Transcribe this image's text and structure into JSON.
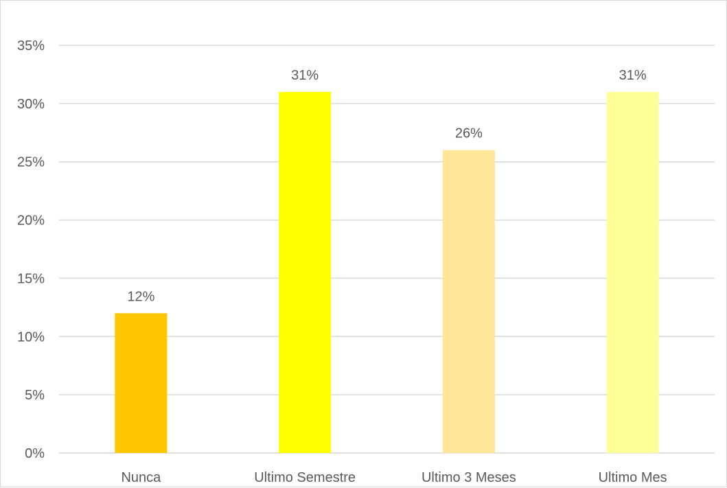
{
  "chart_data": {
    "type": "bar",
    "categories": [
      "Nunca",
      "Ultimo Semestre",
      "Ultimo 3 Meses",
      "Ultimo Mes"
    ],
    "values": [
      12,
      31,
      26,
      31
    ],
    "data_labels": [
      "12%",
      "31%",
      "26%",
      "31%"
    ],
    "bar_colors": [
      "#FFC700",
      "#FFFF00",
      "#FFE699",
      "#FFFF99"
    ],
    "ylim": [
      0,
      35
    ],
    "ytick_values": [
      0,
      5,
      10,
      15,
      20,
      25,
      30,
      35
    ],
    "ytick_labels": [
      "0%",
      "5%",
      "10%",
      "15%",
      "20%",
      "25%",
      "30%",
      "35%"
    ],
    "grid": true,
    "legend": "none",
    "title": "",
    "xlabel": "",
    "ylabel": ""
  },
  "colors": {
    "gridline": "#D9D9D9",
    "text": "#595959",
    "frame": "#D9D9D9"
  }
}
